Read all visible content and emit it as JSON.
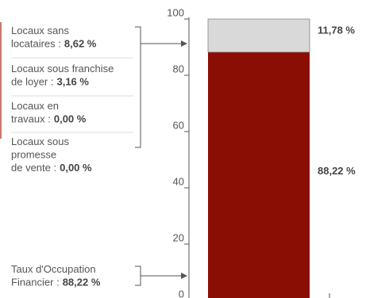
{
  "chart_data": {
    "type": "stacked_bar",
    "series": [
      {
        "values": [
          88.22
        ],
        "value_labels": [
          "88,22 %"
        ],
        "color": "#8b0e04"
      },
      {
        "values": [
          11.78
        ],
        "value_labels": [
          "11,78 %"
        ],
        "color": "#d9d9d9"
      }
    ],
    "ylim": [
      0,
      100
    ],
    "yticks": [
      0,
      20,
      40,
      60,
      80,
      100
    ],
    "annotations": [
      {
        "lines": [
          "Locaux sans",
          "locataires :"
        ],
        "value": "8,62 %"
      },
      {
        "lines": [
          "Locaux sous franchise",
          "de loyer :"
        ],
        "value": "3,16 %"
      },
      {
        "lines": [
          "Locaux en",
          "travaux :"
        ],
        "value": "0,00 %"
      },
      {
        "lines": [
          "Locaux sous",
          "promesse",
          "de vente :"
        ],
        "value": "0,00 %"
      },
      {
        "lines": [
          "Taux d'Occupation",
          "Financier :"
        ],
        "value": "88,22 %"
      }
    ]
  }
}
